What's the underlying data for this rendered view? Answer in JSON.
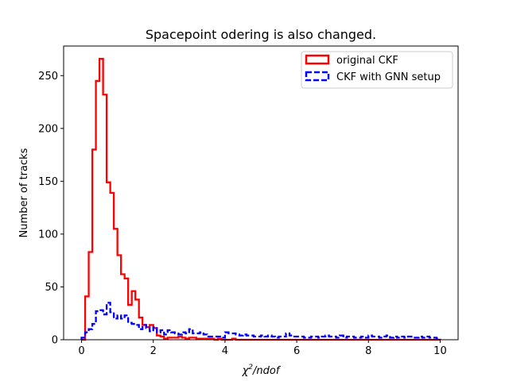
{
  "chart_data": {
    "type": "histogram",
    "title": "Spacepoint odering is also changed.",
    "xlabel_base": "χ",
    "xlabel_sup": "2",
    "xlabel_rest": "/ndof",
    "ylabel": "Number of tracks",
    "xlim": [
      -0.5,
      10.5
    ],
    "ylim": [
      0,
      278
    ],
    "xticks": [
      0,
      2,
      4,
      6,
      8,
      10
    ],
    "yticks": [
      0,
      50,
      100,
      150,
      200,
      250
    ],
    "bin_edges_start": 0,
    "bin_width": 0.1,
    "grid": false,
    "legend_position": "upper right",
    "series": [
      {
        "name": "original CKF",
        "color": "#ff0000",
        "style": "solid",
        "values": [
          0,
          41,
          83,
          180,
          245,
          266,
          232,
          149,
          139,
          105,
          80,
          62,
          58,
          33,
          46,
          38,
          21,
          14,
          12,
          14,
          11,
          4,
          3,
          1,
          2,
          2,
          2,
          3,
          2,
          1,
          2,
          2,
          1,
          1,
          1,
          1,
          1,
          0,
          1,
          0,
          0,
          0,
          1,
          0,
          0,
          0,
          0,
          0,
          0,
          0,
          0,
          0,
          0,
          0,
          0,
          0,
          0,
          0,
          0,
          0,
          0,
          0,
          0,
          0,
          0,
          0,
          0,
          0,
          0,
          0,
          0,
          0,
          0,
          0,
          0,
          0,
          0,
          0,
          0,
          0,
          0,
          0,
          0,
          0,
          0,
          0,
          0,
          0,
          0,
          0,
          0,
          0,
          0,
          0,
          0,
          0,
          0,
          0,
          0,
          0
        ]
      },
      {
        "name": "CKF with GNN setup",
        "color": "#0000ff",
        "style": "dashed",
        "values": [
          2,
          7,
          10,
          15,
          27,
          28,
          24,
          35,
          26,
          20,
          23,
          20,
          23,
          16,
          15,
          14,
          10,
          14,
          11,
          8,
          12,
          7,
          9,
          5,
          9,
          7,
          6,
          5,
          7,
          6,
          10,
          6,
          6,
          7,
          5,
          3,
          3,
          3,
          3,
          2,
          7,
          6,
          6,
          5,
          4,
          5,
          4,
          4,
          3,
          3,
          4,
          3,
          4,
          3,
          2,
          3,
          3,
          6,
          4,
          3,
          3,
          3,
          2,
          2,
          3,
          3,
          2,
          3,
          4,
          3,
          3,
          2,
          4,
          2,
          3,
          3,
          2,
          2,
          3,
          2,
          4,
          3,
          3,
          2,
          3,
          4,
          2,
          3,
          2,
          3,
          2,
          3,
          2,
          2,
          3,
          2,
          3,
          2,
          2,
          1
        ]
      }
    ]
  }
}
